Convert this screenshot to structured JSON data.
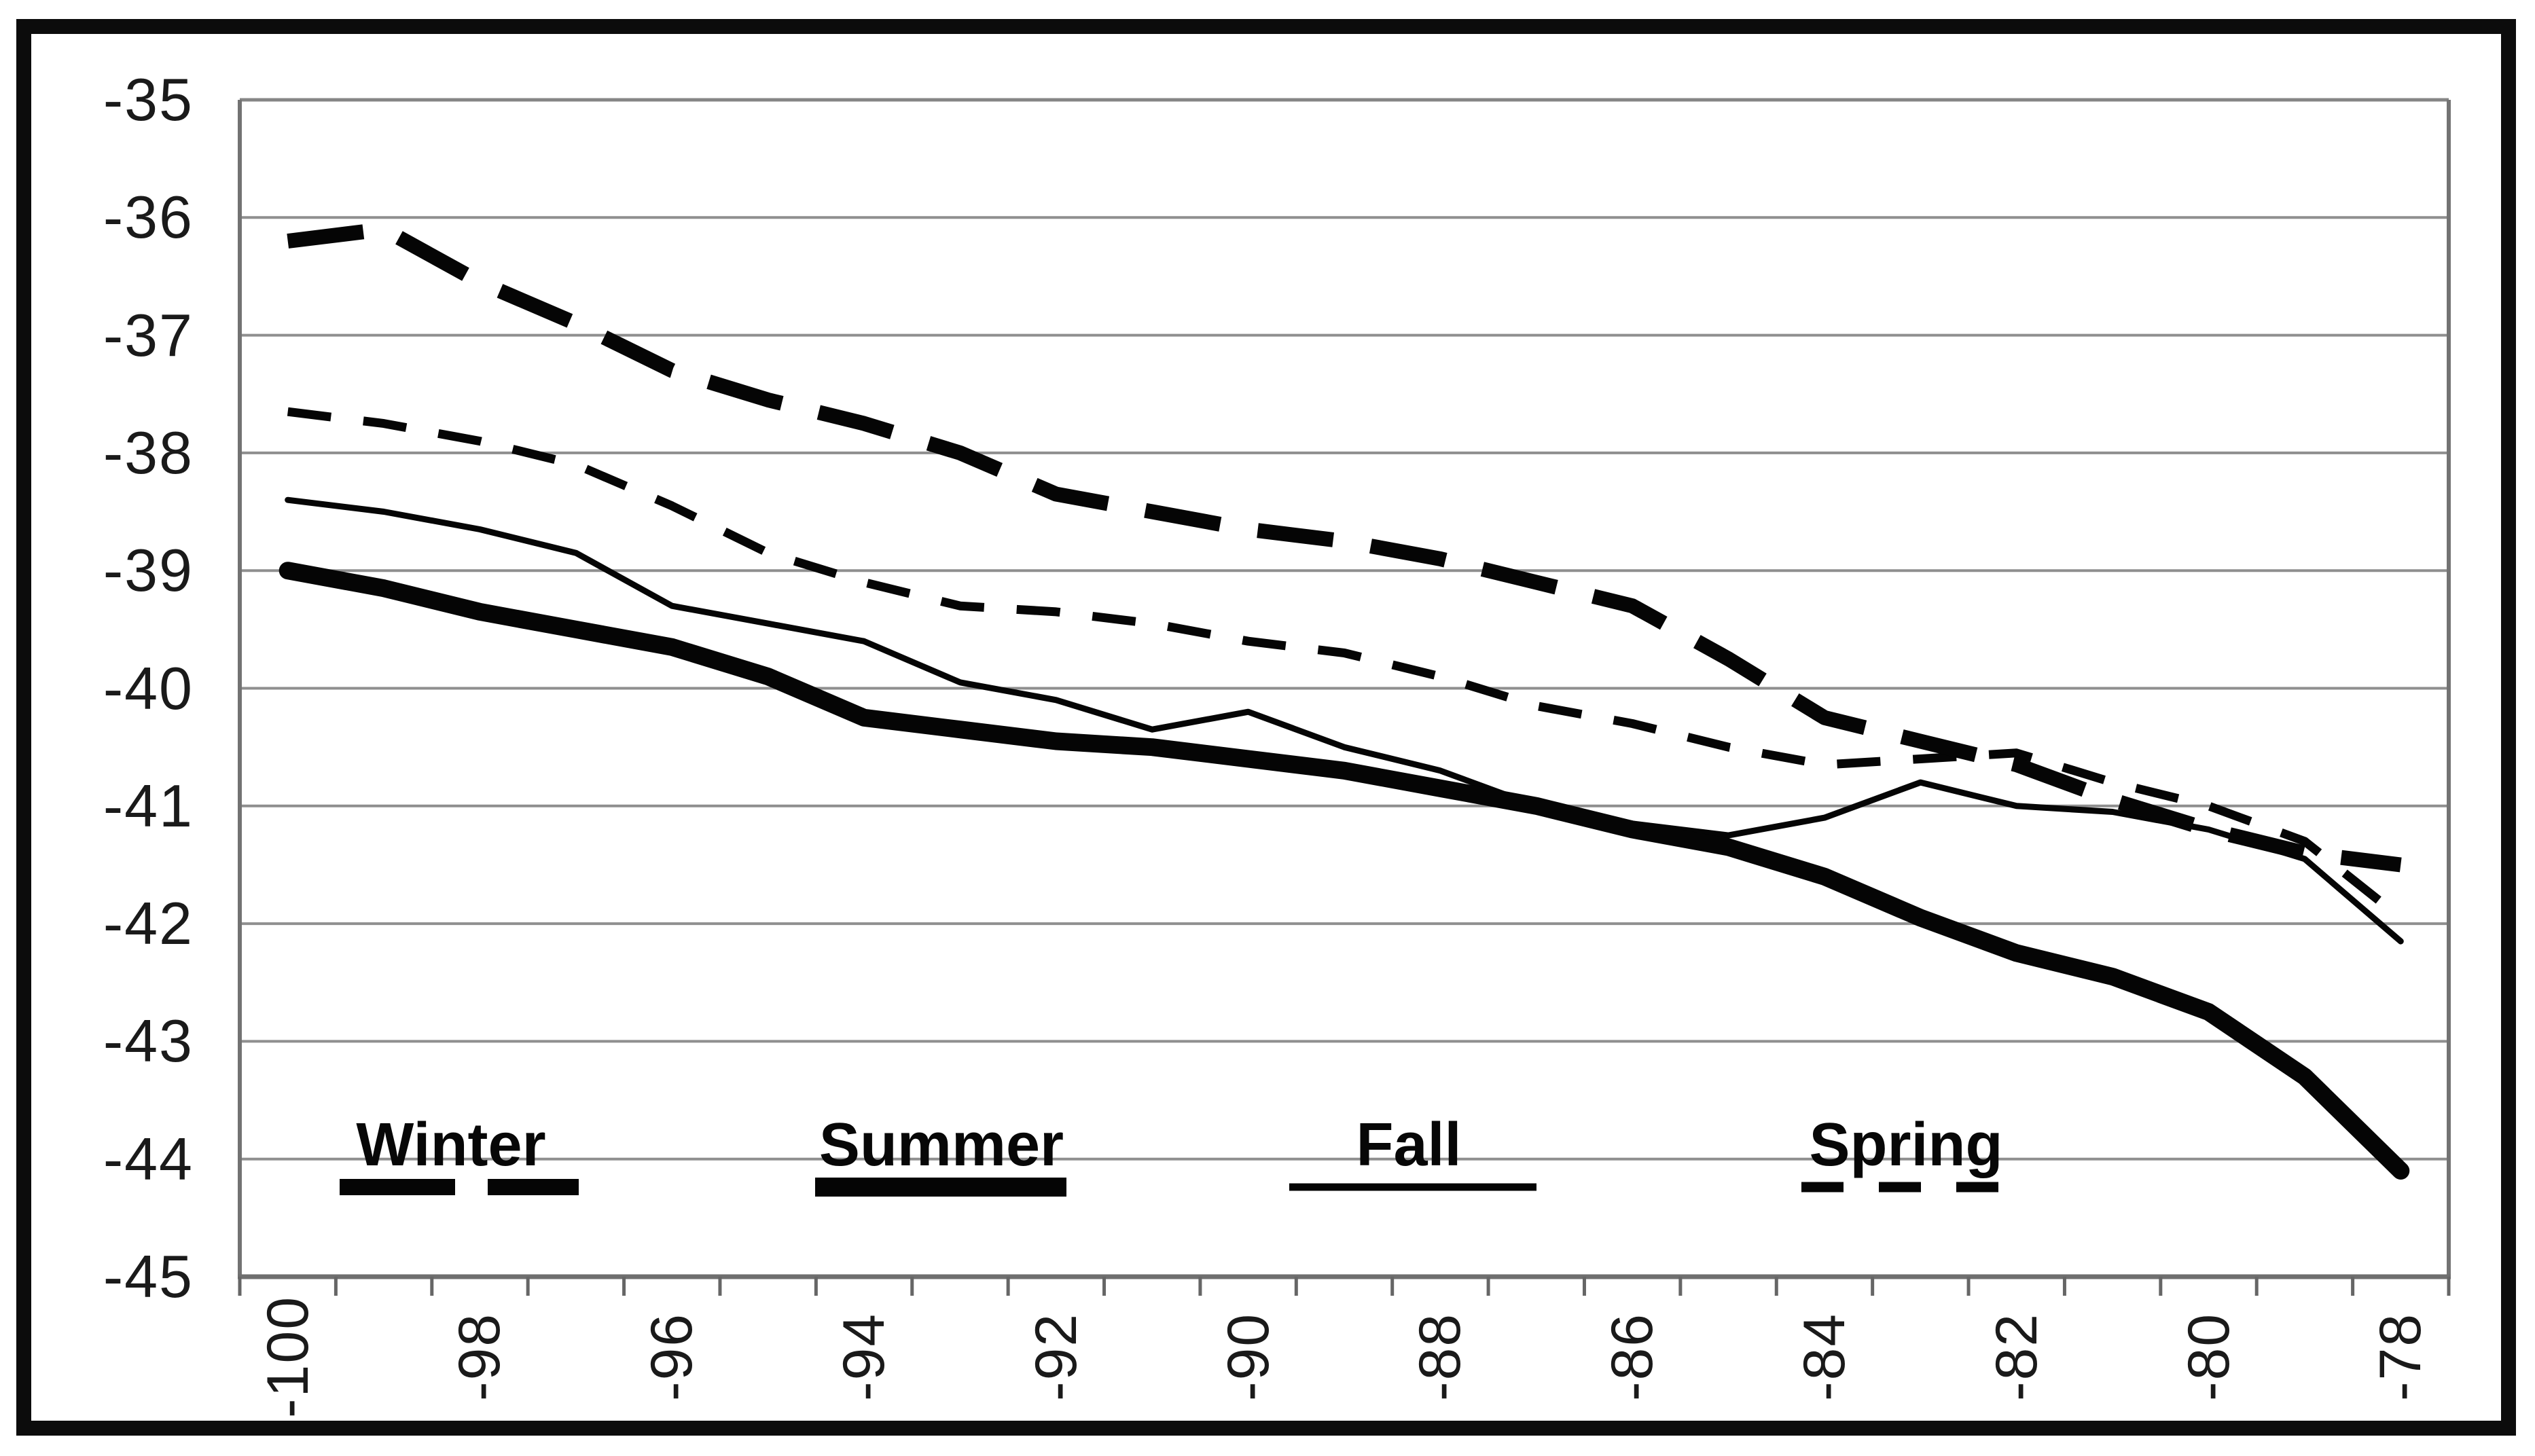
{
  "figure": {
    "description": "Scanned black-and-white seasonal line chart",
    "background_color": "#ffffff",
    "frame_color": "#0c0c0c",
    "line_color": "#050505",
    "gridline_color": "#8f8f8f",
    "axis_color": "#737373"
  },
  "chart_data": {
    "type": "line",
    "title": "",
    "xlabel": "",
    "ylabel": "",
    "x": [
      -100,
      -99,
      -98,
      -97,
      -96,
      -95,
      -94,
      -93,
      -92,
      -91,
      -90,
      -89,
      -88,
      -87,
      -86,
      -85,
      -84,
      -83,
      -82,
      -81,
      -80,
      -79,
      -78
    ],
    "x_tick_labels": [
      "-100",
      "-98",
      "-96",
      "-94",
      "-92",
      "-90",
      "-88",
      "-86",
      "-84",
      "-82",
      "-80",
      "-78"
    ],
    "x_label_every": 2,
    "y_tick_labels": [
      "-35",
      "-36",
      "-37",
      "-38",
      "-39",
      "-40",
      "-41",
      "-42",
      "-43",
      "-44",
      "-45"
    ],
    "ylim": [
      -45,
      -35
    ],
    "grid": true,
    "legend_position": "inside-bottom",
    "series": [
      {
        "name": "Winter",
        "style": "thick-dashed",
        "values": [
          -36.2,
          -36.1,
          -36.55,
          -36.9,
          -37.3,
          -37.55,
          -37.75,
          -38.0,
          -38.35,
          -38.5,
          -38.65,
          -38.75,
          -38.9,
          -39.1,
          -39.3,
          -39.75,
          -40.25,
          -40.45,
          -40.65,
          -40.95,
          -41.2,
          -41.4,
          -41.5
        ]
      },
      {
        "name": "Summer",
        "style": "thick-solid",
        "values": [
          -39.0,
          -39.15,
          -39.35,
          -39.5,
          -39.65,
          -39.9,
          -40.25,
          -40.35,
          -40.45,
          -40.5,
          -40.6,
          -40.7,
          -40.85,
          -41.0,
          -41.2,
          -41.35,
          -41.6,
          -41.95,
          -42.25,
          -42.45,
          -42.75,
          -43.3,
          -44.1
        ]
      },
      {
        "name": "Fall",
        "style": "thin-solid",
        "values": [
          -38.4,
          -38.5,
          -38.65,
          -38.85,
          -39.3,
          -39.45,
          -39.6,
          -39.95,
          -40.1,
          -40.35,
          -40.2,
          -40.5,
          -40.7,
          -41.0,
          -41.15,
          -41.25,
          -41.1,
          -40.8,
          -41.0,
          -41.05,
          -41.2,
          -41.45,
          -42.15
        ]
      },
      {
        "name": "Spring",
        "style": "thin-dashed",
        "values": [
          -37.65,
          -37.75,
          -37.9,
          -38.1,
          -38.45,
          -38.85,
          -39.1,
          -39.3,
          -39.35,
          -39.45,
          -39.6,
          -39.7,
          -39.9,
          -40.15,
          -40.3,
          -40.5,
          -40.65,
          -40.6,
          -40.55,
          -40.8,
          -41.0,
          -41.3,
          -41.95
        ]
      }
    ]
  }
}
